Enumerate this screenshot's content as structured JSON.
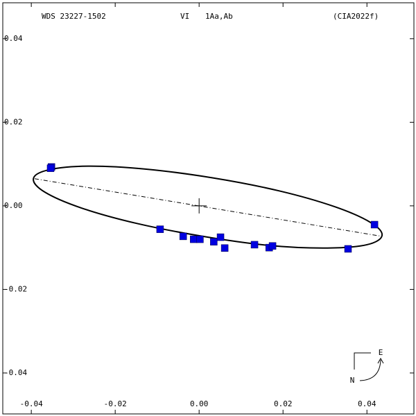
{
  "chart_data": {
    "type": "scatter",
    "title": "WDS 23227-1502",
    "annotations": [
      "VI",
      "1Aa,Ab",
      "(CIA2022f)"
    ],
    "compass": {
      "east": "E",
      "north": "N"
    },
    "xlim": [
      -0.0468,
      0.0512
    ],
    "ylim": [
      -0.0498,
      0.0486
    ],
    "xticks": [
      -0.04,
      -0.02,
      {
        "value": 0,
        "label": "0.00"
      },
      0.02,
      0.04
    ],
    "yticks": [
      -0.04,
      -0.02,
      {
        "value": 0,
        "label": "0.00"
      },
      0.02,
      0.04
    ],
    "series": [
      {
        "color": "#0000e0",
        "x": [
          -0.0352,
          -0.0354,
          -0.0093,
          -0.0038,
          -0.0013,
          0.0002,
          0.0035,
          0.0051,
          0.0061,
          0.0132,
          0.0167,
          0.0175,
          0.0355,
          0.0418
        ],
        "y": [
          0.0093,
          0.009,
          -0.0056,
          -0.0073,
          -0.008,
          -0.008,
          -0.0086,
          -0.0075,
          -0.0101,
          -0.0093,
          -0.01,
          -0.0096,
          -0.0103,
          -0.0045
        ]
      }
    ],
    "orbit": {
      "x": [
        0.0436,
        0.04,
        0.0306,
        0.0169,
        0.0009,
        -0.0149,
        -0.0281,
        -0.0368,
        -0.0395,
        -0.0359,
        -0.0265,
        -0.0128,
        0.0032,
        0.019,
        0.0323,
        0.0409
      ],
      "y": [
        -0.0071,
        -0.0093,
        -0.0101,
        -0.0095,
        -0.0073,
        -0.0042,
        -0.0005,
        0.0033,
        0.0065,
        0.0086,
        0.0095,
        0.0088,
        0.0067,
        0.0036,
        -0.0002,
        -0.004
      ]
    },
    "node_line": {
      "x": [
        -0.0392,
        0.0436
      ],
      "y": [
        0.0065,
        -0.0073
      ]
    }
  }
}
